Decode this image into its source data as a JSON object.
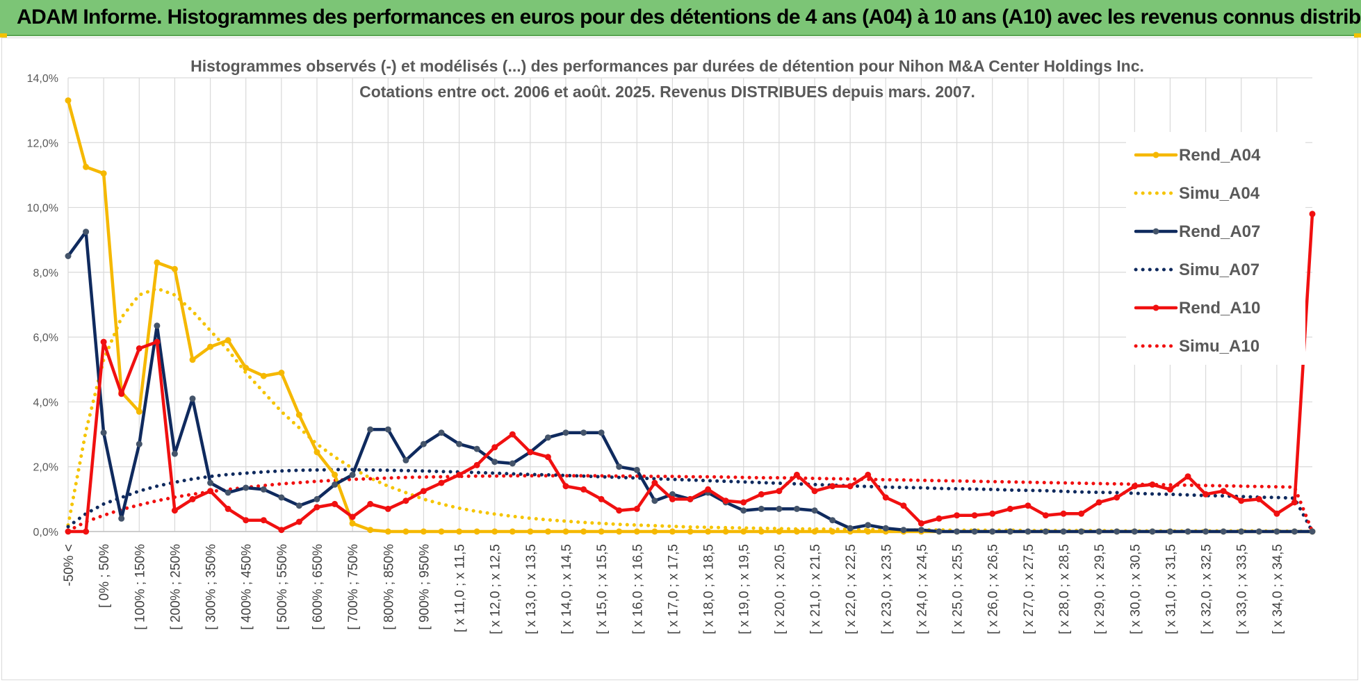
{
  "banner": {
    "title": "ADAM Informe. Histogrammes des performances en euros pour des détentions de 4 ans (A04) à 10 ans (A10) avec les revenus connus distribués"
  },
  "colors": {
    "banner_bg": "#7cc576",
    "accent": "#f2c200"
  },
  "chart_data": {
    "type": "line",
    "title": "Histogrammes observés (-) et modélisés (...) des performances par durées de détention pour Nihon M&A Center Holdings Inc.",
    "subtitle": "Cotations entre oct. 2006 et août. 2025.  Revenus DISTRIBUES depuis mars. 2007.",
    "xlabel": "",
    "ylabel": "",
    "ylim": [
      0,
      14
    ],
    "yticks": [
      "0,0%",
      "2,0%",
      "4,0%",
      "6,0%",
      "8,0%",
      "10,0%",
      "12,0%",
      "14,0%"
    ],
    "grid": true,
    "legend_position": "right",
    "x_tick_labels": [
      "-50% <",
      "[ 0% ; 50%",
      "[ 100% ; 150%",
      "[ 200% ; 250%",
      "[ 300% ; 350%",
      "[ 400% ; 450%",
      "[ 500% ; 550%",
      "[ 600% ; 650%",
      "[ 700% ; 750%",
      "[ 800% ; 850%",
      "[ 900% ; 950%",
      "[ x 11,0 ; x 11,5",
      "[ x 12,0 ; x 12,5",
      "[ x 13,0 ; x 13,5",
      "[ x 14,0 ; x 14,5",
      "[ x 15,0 ; x 15,5",
      "[ x 16,0 ; x 16,5",
      "[ x 17,0 ; x 17,5",
      "[ x 18,0 ; x 18,5",
      "[ x 19,0 ; x 19,5",
      "[ x 20,0 ; x 20,5",
      "[ x 21,0 ; x 21,5",
      "[ x 22,0 ; x 22,5",
      "[ x 23,0 ; x 23,5",
      "[ x 24,0 ; x 24,5",
      "[ x 25,0 ; x 25,5",
      "[ x 26,0 ; x 26,5",
      "[ x 27,0 ; x 27,5",
      "[ x 28,0 ; x 28,5",
      "[ x 29,0 ; x 29,5",
      "[ x 30,0 ; x 30,5",
      "[ x 31,0 ; x 31,5",
      "[ x 32,0 ; x 32,5",
      "[ x 33,0 ; x 33,5",
      "[ x 34,0 ; x 34,5"
    ],
    "tick_every": 2,
    "n_points": 71,
    "series": [
      {
        "name": "Rend_A04",
        "color": "#f5b800",
        "style": "solid",
        "markers": true,
        "values": [
          13.3,
          11.25,
          11.05,
          4.3,
          3.7,
          8.3,
          8.1,
          5.3,
          5.7,
          5.9,
          5.05,
          4.8,
          4.9,
          3.6,
          2.45,
          1.75,
          0.25,
          0.05,
          0,
          0,
          0,
          0,
          0,
          0,
          0,
          0,
          0,
          0,
          0,
          0,
          0,
          0,
          0,
          0,
          0,
          0,
          0,
          0,
          0,
          0,
          0,
          0,
          0,
          0,
          0,
          0,
          0,
          0,
          0,
          0,
          0,
          0,
          0,
          0,
          0,
          0,
          0,
          0,
          0,
          0,
          0,
          0,
          0,
          0,
          0,
          0,
          0,
          0,
          0,
          0,
          0
        ]
      },
      {
        "name": "Simu_A04",
        "color": "#f5c400",
        "style": "dotted",
        "markers": false,
        "values": [
          0.2,
          3.1,
          5.3,
          6.6,
          7.3,
          7.5,
          7.3,
          6.8,
          6.2,
          5.6,
          4.9,
          4.3,
          3.7,
          3.2,
          2.7,
          2.3,
          1.95,
          1.65,
          1.4,
          1.2,
          1.0,
          0.85,
          0.72,
          0.62,
          0.54,
          0.47,
          0.41,
          0.36,
          0.32,
          0.28,
          0.25,
          0.22,
          0.2,
          0.18,
          0.16,
          0.14,
          0.13,
          0.12,
          0.11,
          0.1,
          0.09,
          0.08,
          0.08,
          0.07,
          0.07,
          0.06,
          0.06,
          0.05,
          0.05,
          0.05,
          0.04,
          0.04,
          0.04,
          0.04,
          0.03,
          0.03,
          0.03,
          0.03,
          0.03,
          0.02,
          0.02,
          0.02,
          0.02,
          0.02,
          0.02,
          0.02,
          0.02,
          0.02,
          0.01,
          0.01,
          0
        ]
      },
      {
        "name": "Rend_A07",
        "color": "#0f2a5e",
        "style": "solid",
        "markers": true,
        "values": [
          8.5,
          9.25,
          3.05,
          0.4,
          2.7,
          6.35,
          2.4,
          4.1,
          1.5,
          1.2,
          1.35,
          1.3,
          1.05,
          0.8,
          1.0,
          1.45,
          1.75,
          3.15,
          3.15,
          2.2,
          2.7,
          3.05,
          2.7,
          2.55,
          2.15,
          2.1,
          2.45,
          2.9,
          3.05,
          3.05,
          3.05,
          2.0,
          1.9,
          0.95,
          1.15,
          1.0,
          1.2,
          0.9,
          0.65,
          0.7,
          0.7,
          0.7,
          0.65,
          0.35,
          0.1,
          0.2,
          0.1,
          0.05,
          0.05,
          0,
          0,
          0,
          0,
          0,
          0,
          0,
          0,
          0,
          0,
          0,
          0,
          0,
          0,
          0,
          0,
          0,
          0,
          0,
          0,
          0,
          0
        ]
      },
      {
        "name": "Simu_A07",
        "color": "#0f2a5e",
        "style": "dotted",
        "markers": false,
        "values": [
          0.15,
          0.55,
          0.85,
          1.05,
          1.25,
          1.4,
          1.52,
          1.62,
          1.7,
          1.76,
          1.8,
          1.84,
          1.87,
          1.89,
          1.9,
          1.91,
          1.91,
          1.9,
          1.89,
          1.88,
          1.87,
          1.85,
          1.84,
          1.82,
          1.8,
          1.78,
          1.76,
          1.75,
          1.73,
          1.71,
          1.69,
          1.67,
          1.65,
          1.63,
          1.61,
          1.59,
          1.57,
          1.55,
          1.53,
          1.51,
          1.49,
          1.47,
          1.45,
          1.43,
          1.41,
          1.39,
          1.37,
          1.36,
          1.35,
          1.33,
          1.32,
          1.31,
          1.3,
          1.28,
          1.27,
          1.26,
          1.24,
          1.22,
          1.21,
          1.2,
          1.18,
          1.16,
          1.15,
          1.13,
          1.11,
          1.1,
          1.08,
          1.06,
          1.05,
          1.03,
          0
        ]
      },
      {
        "name": "Rend_A10",
        "color": "#f01010",
        "style": "solid",
        "markers": true,
        "values": [
          0,
          0,
          5.85,
          4.25,
          5.65,
          5.85,
          0.65,
          1.0,
          1.25,
          0.7,
          0.35,
          0.35,
          0.05,
          0.3,
          0.75,
          0.85,
          0.45,
          0.85,
          0.7,
          0.95,
          1.25,
          1.5,
          1.75,
          2.05,
          2.6,
          3.0,
          2.45,
          2.3,
          1.4,
          1.3,
          1.0,
          0.65,
          0.7,
          1.5,
          1.0,
          1.0,
          1.3,
          0.95,
          0.9,
          1.15,
          1.25,
          1.75,
          1.25,
          1.4,
          1.4,
          1.75,
          1.05,
          0.8,
          0.25,
          0.4,
          0.5,
          0.5,
          0.55,
          0.7,
          0.8,
          0.5,
          0.55,
          0.55,
          0.9,
          1.05,
          1.4,
          1.45,
          1.3,
          1.7,
          1.15,
          1.25,
          0.95,
          1.0,
          0.55,
          0.9,
          9.8
        ]
      },
      {
        "name": "Simu_A10",
        "color": "#f01010",
        "style": "dotted",
        "markers": false,
        "values": [
          0.02,
          0.3,
          0.5,
          0.68,
          0.82,
          0.95,
          1.06,
          1.15,
          1.23,
          1.3,
          1.36,
          1.42,
          1.47,
          1.51,
          1.55,
          1.58,
          1.61,
          1.63,
          1.65,
          1.67,
          1.68,
          1.69,
          1.7,
          1.71,
          1.71,
          1.72,
          1.72,
          1.72,
          1.72,
          1.72,
          1.72,
          1.71,
          1.71,
          1.7,
          1.7,
          1.69,
          1.69,
          1.68,
          1.67,
          1.66,
          1.66,
          1.65,
          1.64,
          1.63,
          1.62,
          1.61,
          1.6,
          1.59,
          1.58,
          1.57,
          1.56,
          1.55,
          1.54,
          1.53,
          1.52,
          1.51,
          1.5,
          1.49,
          1.48,
          1.47,
          1.46,
          1.45,
          1.44,
          1.43,
          1.42,
          1.41,
          1.4,
          1.39,
          1.38,
          1.37,
          0
        ]
      }
    ]
  }
}
